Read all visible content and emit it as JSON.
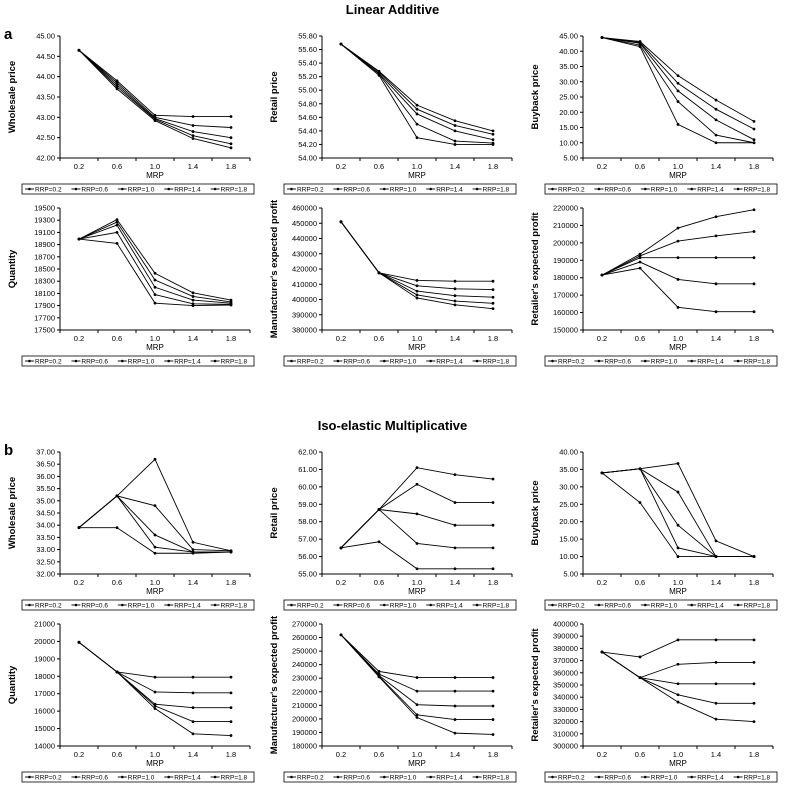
{
  "figure": {
    "section_a_title": "Linear Additive",
    "section_a_letter": "a",
    "section_b_title": "Iso-elastic Multiplicative",
    "section_b_letter": "b"
  },
  "colors": {
    "line": "#000000",
    "axis": "#000000"
  },
  "chart_data": [
    {
      "type": "line",
      "section": "a",
      "ylabel": "Wholesale price",
      "xlabel": "MRP",
      "x": [
        "0.2",
        "0.6",
        "1.0",
        "1.4",
        "1.8"
      ],
      "ylim": [
        42.0,
        45.0
      ],
      "yticks": [
        "42.00",
        "42.50",
        "43.00",
        "43.50",
        "44.00",
        "44.50",
        "45.00"
      ],
      "series": [
        {
          "name": "RRP=0.2",
          "values": [
            44.65,
            43.9,
            43.05,
            43.02,
            43.02
          ]
        },
        {
          "name": "RRP=0.6",
          "values": [
            44.65,
            43.85,
            43.0,
            42.8,
            42.75
          ]
        },
        {
          "name": "RRP=1.0",
          "values": [
            44.65,
            43.8,
            42.97,
            42.65,
            42.5
          ]
        },
        {
          "name": "RRP=1.4",
          "values": [
            44.65,
            43.75,
            42.95,
            42.55,
            42.35
          ]
        },
        {
          "name": "RRP=1.8",
          "values": [
            44.65,
            43.7,
            42.92,
            42.48,
            42.25
          ]
        }
      ],
      "legend": [
        "RRP=0.2",
        "RRP=0.6",
        "RRP=1.0",
        "RRP=1.4",
        "RRP=1.8"
      ]
    },
    {
      "type": "line",
      "section": "a",
      "ylabel": "Retail price",
      "xlabel": "MRP",
      "x": [
        "0.2",
        "0.6",
        "1.0",
        "1.4",
        "1.8"
      ],
      "ylim": [
        54.0,
        55.8
      ],
      "yticks": [
        "54.00",
        "54.20",
        "54.40",
        "54.60",
        "54.80",
        "55.00",
        "55.20",
        "55.40",
        "55.60",
        "55.80"
      ],
      "series": [
        {
          "name": "RRP=0.2",
          "values": [
            55.68,
            55.28,
            54.78,
            54.55,
            54.4
          ]
        },
        {
          "name": "RRP=0.6",
          "values": [
            55.68,
            55.27,
            54.72,
            54.48,
            54.35
          ]
        },
        {
          "name": "RRP=1.0",
          "values": [
            55.68,
            55.25,
            54.65,
            54.4,
            54.27
          ]
        },
        {
          "name": "RRP=1.4",
          "values": [
            55.68,
            55.24,
            54.5,
            54.25,
            54.22
          ]
        },
        {
          "name": "RRP=1.8",
          "values": [
            55.68,
            55.22,
            54.3,
            54.2,
            54.2
          ]
        }
      ],
      "legend": [
        "RRP=0.2",
        "RRP=0.6",
        "RRP=1.0",
        "RRP=1.4",
        "RRP=1.8"
      ]
    },
    {
      "type": "line",
      "section": "a",
      "ylabel": "Buyback price",
      "xlabel": "MRP",
      "x": [
        "0.2",
        "0.6",
        "1.0",
        "1.4",
        "1.8"
      ],
      "ylim": [
        5.0,
        45.0
      ],
      "yticks": [
        "5.00",
        "10.00",
        "15.00",
        "20.00",
        "25.00",
        "30.00",
        "35.00",
        "40.00",
        "45.00"
      ],
      "series": [
        {
          "name": "RRP=0.2",
          "values": [
            44.5,
            43.2,
            32.0,
            24.0,
            17.0
          ]
        },
        {
          "name": "RRP=0.6",
          "values": [
            44.5,
            42.9,
            29.5,
            21.0,
            14.5
          ]
        },
        {
          "name": "RRP=1.0",
          "values": [
            44.5,
            42.6,
            27.0,
            17.5,
            11.0
          ]
        },
        {
          "name": "RRP=1.4",
          "values": [
            44.5,
            42.0,
            23.5,
            12.5,
            10.0
          ]
        },
        {
          "name": "RRP=1.8",
          "values": [
            44.5,
            41.5,
            16.0,
            10.0,
            10.0
          ]
        }
      ],
      "legend": [
        "RRP=0.2",
        "RRP=0.6",
        "RRP=1.0",
        "RRP=1.4",
        "RRP=1.8"
      ]
    },
    {
      "type": "line",
      "section": "a",
      "ylabel": "Quantity",
      "xlabel": "MRP",
      "x": [
        "0.2",
        "0.6",
        "1.0",
        "1.4",
        "1.8"
      ],
      "ylim": [
        17500,
        19500
      ],
      "yticks": [
        "17500",
        "17700",
        "17900",
        "18100",
        "18300",
        "18500",
        "18700",
        "18900",
        "19100",
        "19300",
        "19500"
      ],
      "series": [
        {
          "name": "RRP=0.2",
          "values": [
            18990,
            19310,
            18430,
            18110,
            17990
          ]
        },
        {
          "name": "RRP=0.6",
          "values": [
            18990,
            19270,
            18320,
            18050,
            17960
          ]
        },
        {
          "name": "RRP=1.0",
          "values": [
            18990,
            19220,
            18200,
            17990,
            17940
          ]
        },
        {
          "name": "RRP=1.4",
          "values": [
            18990,
            19100,
            18080,
            17930,
            17920
          ]
        },
        {
          "name": "RRP=1.8",
          "values": [
            18990,
            18920,
            17940,
            17900,
            17910
          ]
        }
      ],
      "legend": [
        "RRP=0.2",
        "RRP=0.6",
        "RRP=1.0",
        "RRP=1.4",
        "RRP=1.8"
      ]
    },
    {
      "type": "line",
      "section": "a",
      "ylabel": "Manufacturer's expected profit",
      "xlabel": "MRP",
      "x": [
        "0.2",
        "0.6",
        "1.0",
        "1.4",
        "1.8"
      ],
      "ylim": [
        380000,
        460000
      ],
      "yticks": [
        "380000",
        "390000",
        "400000",
        "410000",
        "420000",
        "430000",
        "440000",
        "450000",
        "460000"
      ],
      "series": [
        {
          "name": "RRP=0.2",
          "values": [
            451000,
            417500,
            412500,
            412000,
            412000
          ]
        },
        {
          "name": "RRP=0.6",
          "values": [
            451000,
            417500,
            409000,
            407000,
            406500
          ]
        },
        {
          "name": "RRP=1.0",
          "values": [
            451000,
            417500,
            405500,
            402500,
            401500
          ]
        },
        {
          "name": "RRP=1.4",
          "values": [
            451000,
            417500,
            403000,
            399000,
            397500
          ]
        },
        {
          "name": "RRP=1.8",
          "values": [
            451000,
            417500,
            401000,
            396500,
            394000
          ]
        }
      ],
      "legend": [
        "RRP=0.2",
        "RRP=0.6",
        "RRP=1.0",
        "RRP=1.4",
        "RRP=1.8"
      ]
    },
    {
      "type": "line",
      "section": "a",
      "ylabel": "Retailer's expected profit",
      "xlabel": "MRP",
      "x": [
        "0.2",
        "0.6",
        "1.0",
        "1.4",
        "1.8"
      ],
      "ylim": [
        150000,
        220000
      ],
      "yticks": [
        "150000",
        "160000",
        "170000",
        "180000",
        "190000",
        "200000",
        "210000",
        "220000"
      ],
      "series": [
        {
          "name": "RRP=0.2",
          "values": [
            181500,
            193500,
            208500,
            215000,
            219000
          ]
        },
        {
          "name": "RRP=0.6",
          "values": [
            181500,
            192500,
            201000,
            204000,
            206500
          ]
        },
        {
          "name": "RRP=1.0",
          "values": [
            181500,
            191500,
            191500,
            191500,
            191500
          ]
        },
        {
          "name": "RRP=1.4",
          "values": [
            181500,
            189000,
            179000,
            176500,
            176500
          ]
        },
        {
          "name": "RRP=1.8",
          "values": [
            181500,
            185500,
            163000,
            160500,
            160500
          ]
        }
      ],
      "legend": [
        "RRP=0.2",
        "RRP=0.6",
        "RRP=1.0",
        "RRP=1.4",
        "RRP=1.8"
      ]
    },
    {
      "type": "line",
      "section": "b",
      "ylabel": "Wholesale price",
      "xlabel": "MRP",
      "x": [
        "0.2",
        "0.6",
        "1.0",
        "1.4",
        "1.8"
      ],
      "ylim": [
        32.0,
        37.0
      ],
      "yticks": [
        "32.00",
        "32.50",
        "33.00",
        "33.50",
        "34.00",
        "34.50",
        "35.00",
        "35.50",
        "36.00",
        "36.50",
        "37.00"
      ],
      "series": [
        {
          "name": "RRP=0.2",
          "values": [
            33.9,
            35.2,
            36.7,
            33.3,
            32.95
          ]
        },
        {
          "name": "RRP=0.6",
          "values": [
            33.9,
            35.2,
            34.8,
            33.0,
            32.95
          ]
        },
        {
          "name": "RRP=1.0",
          "values": [
            33.9,
            35.2,
            33.6,
            32.9,
            32.9
          ]
        },
        {
          "name": "RRP=1.4",
          "values": [
            33.9,
            35.2,
            33.1,
            32.9,
            32.9
          ]
        },
        {
          "name": "RRP=1.8",
          "values": [
            33.9,
            33.9,
            32.85,
            32.85,
            32.9
          ]
        }
      ],
      "legend": [
        "RRP=0.2",
        "RRP=0.6",
        "RRP=1.0",
        "RRP=1.4",
        "RRP=1.8"
      ]
    },
    {
      "type": "line",
      "section": "b",
      "ylabel": "Retail price",
      "xlabel": "MRP",
      "x": [
        "0.2",
        "0.6",
        "1.0",
        "1.4",
        "1.8"
      ],
      "ylim": [
        55.0,
        62.0
      ],
      "yticks": [
        "55.00",
        "56.00",
        "57.00",
        "58.00",
        "59.00",
        "60.00",
        "61.00",
        "62.00"
      ],
      "series": [
        {
          "name": "RRP=0.2",
          "values": [
            56.5,
            58.7,
            61.1,
            60.7,
            60.45
          ]
        },
        {
          "name": "RRP=0.6",
          "values": [
            56.5,
            58.7,
            60.15,
            59.1,
            59.1
          ]
        },
        {
          "name": "RRP=1.0",
          "values": [
            56.5,
            58.7,
            58.45,
            57.8,
            57.8
          ]
        },
        {
          "name": "RRP=1.4",
          "values": [
            56.5,
            58.7,
            56.75,
            56.5,
            56.5
          ]
        },
        {
          "name": "RRP=1.8",
          "values": [
            56.5,
            56.85,
            55.3,
            55.3,
            55.3
          ]
        }
      ],
      "legend": [
        "RRP=0.2",
        "RRP=0.6",
        "RRP=1.0",
        "RRP=1.4",
        "RRP=1.8"
      ]
    },
    {
      "type": "line",
      "section": "b",
      "ylabel": "Buyback price",
      "xlabel": "MRP",
      "x": [
        "0.2",
        "0.6",
        "1.0",
        "1.4",
        "1.8"
      ],
      "ylim": [
        5.0,
        40.0
      ],
      "yticks": [
        "5.00",
        "10.00",
        "15.00",
        "20.00",
        "25.00",
        "30.00",
        "35.00",
        "40.00"
      ],
      "series": [
        {
          "name": "RRP=0.2",
          "values": [
            34.0,
            35.2,
            36.7,
            14.5,
            10.0
          ]
        },
        {
          "name": "RRP=0.6",
          "values": [
            34.0,
            35.2,
            28.5,
            10.0,
            10.0
          ]
        },
        {
          "name": "RRP=1.0",
          "values": [
            34.0,
            35.2,
            19.0,
            10.0,
            10.0
          ]
        },
        {
          "name": "RRP=1.4",
          "values": [
            34.0,
            35.2,
            12.5,
            10.0,
            10.0
          ]
        },
        {
          "name": "RRP=1.8",
          "values": [
            34.0,
            25.5,
            10.0,
            10.0,
            10.0
          ]
        }
      ],
      "legend": [
        "RRP=0.2",
        "RRP=0.6",
        "RRP=1.0",
        "RRP=1.4",
        "RRP=1.8"
      ]
    },
    {
      "type": "line",
      "section": "b",
      "ylabel": "Quantity",
      "xlabel": "MRP",
      "x": [
        "0.2",
        "0.6",
        "1.0",
        "1.4",
        "1.8"
      ],
      "ylim": [
        14000,
        21000
      ],
      "yticks": [
        "14000",
        "15000",
        "16000",
        "17000",
        "18000",
        "19000",
        "20000",
        "21000"
      ],
      "series": [
        {
          "name": "RRP=0.2",
          "values": [
            19950,
            18250,
            17950,
            17950,
            17950
          ]
        },
        {
          "name": "RRP=0.6",
          "values": [
            19950,
            18250,
            17100,
            17050,
            17050
          ]
        },
        {
          "name": "RRP=1.0",
          "values": [
            19950,
            18250,
            16400,
            16200,
            16200
          ]
        },
        {
          "name": "RRP=1.4",
          "values": [
            19950,
            18250,
            16300,
            15400,
            15400
          ]
        },
        {
          "name": "RRP=1.8",
          "values": [
            19950,
            18250,
            16150,
            14700,
            14600
          ]
        }
      ],
      "legend": [
        "RRP=0.2",
        "RRP=0.6",
        "RRP=1.0",
        "RRP=1.4",
        "RRP=1.8"
      ]
    },
    {
      "type": "line",
      "section": "b",
      "ylabel": "Manufacturer's expected profit",
      "xlabel": "MRP",
      "x": [
        "0.2",
        "0.6",
        "1.0",
        "1.4",
        "1.8"
      ],
      "ylim": [
        180000,
        270000
      ],
      "yticks": [
        "180000",
        "190000",
        "200000",
        "210000",
        "220000",
        "230000",
        "240000",
        "250000",
        "260000",
        "270000"
      ],
      "series": [
        {
          "name": "RRP=0.2",
          "values": [
            262000,
            235000,
            230500,
            230500,
            230500
          ]
        },
        {
          "name": "RRP=0.6",
          "values": [
            262000,
            233000,
            220500,
            220500,
            220500
          ]
        },
        {
          "name": "RRP=1.0",
          "values": [
            262000,
            232000,
            210500,
            209500,
            209500
          ]
        },
        {
          "name": "RRP=1.4",
          "values": [
            262000,
            231500,
            203000,
            199500,
            199500
          ]
        },
        {
          "name": "RRP=1.8",
          "values": [
            262000,
            231000,
            201000,
            189500,
            188500
          ]
        }
      ],
      "legend": [
        "RRP=0.2",
        "RRP=0.6",
        "RRP=1.0",
        "RRP=1.4",
        "RRP=1.8"
      ]
    },
    {
      "type": "line",
      "section": "b",
      "ylabel": "Retailer's expected profit",
      "xlabel": "MRP",
      "x": [
        "0.2",
        "0.6",
        "1.0",
        "1.4",
        "1.8"
      ],
      "ylim": [
        300000,
        400000
      ],
      "yticks": [
        "300000",
        "310000",
        "320000",
        "330000",
        "340000",
        "350000",
        "360000",
        "370000",
        "380000",
        "390000",
        "400000"
      ],
      "series": [
        {
          "name": "RRP=0.2",
          "values": [
            377000,
            373000,
            387000,
            387000,
            387000
          ]
        },
        {
          "name": "RRP=0.6",
          "values": [
            377000,
            356000,
            367000,
            368500,
            368500
          ]
        },
        {
          "name": "RRP=1.0",
          "values": [
            377000,
            356000,
            351000,
            351000,
            351000
          ]
        },
        {
          "name": "RRP=1.4",
          "values": [
            377000,
            356000,
            342000,
            335000,
            335000
          ]
        },
        {
          "name": "RRP=1.8",
          "values": [
            377000,
            356000,
            336000,
            322000,
            320000
          ]
        }
      ],
      "legend": [
        "RRP=0.2",
        "RRP=0.6",
        "RRP=1.0",
        "RRP=1.4",
        "RRP=1.8"
      ]
    }
  ]
}
